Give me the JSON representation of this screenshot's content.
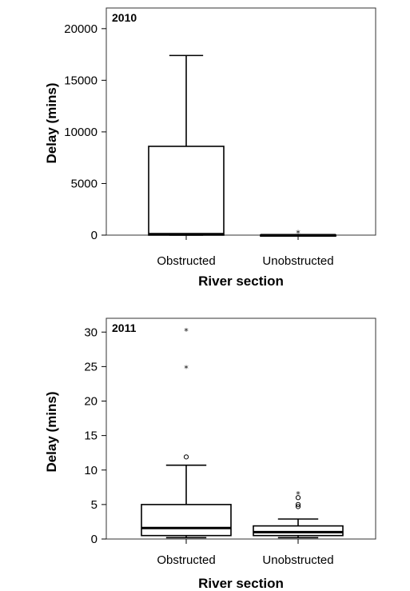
{
  "chart_data": [
    {
      "type": "boxplot",
      "panel_label": "2010",
      "xlabel": "River section",
      "ylabel": "Delay (mins)",
      "categories": [
        "Obstructed",
        "Unobstructed"
      ],
      "ylim": [
        0,
        22000
      ],
      "yticks": [
        "0",
        "5000",
        "10000",
        "15000",
        "20000"
      ],
      "boxes": [
        {
          "name": "Obstructed",
          "whisker_low": 0,
          "q1": 0,
          "median": 100,
          "q3": 8600,
          "whisker_high": 17400,
          "outliers_circle": [],
          "outliers_star": []
        },
        {
          "name": "Unobstructed",
          "whisker_low": 0,
          "q1": 0,
          "median": 0,
          "q3": 20,
          "whisker_high": 50,
          "outliers_circle": [],
          "outliers_star": [
            350
          ]
        }
      ]
    },
    {
      "type": "boxplot",
      "panel_label": "2011",
      "xlabel": "River section",
      "ylabel": "Delay (mins)",
      "categories": [
        "Obstructed",
        "Unobstructed"
      ],
      "ylim": [
        0,
        32
      ],
      "yticks": [
        "0",
        "5",
        "10",
        "15",
        "20",
        "25",
        "30"
      ],
      "boxes": [
        {
          "name": "Obstructed",
          "whisker_low": 0.2,
          "q1": 0.5,
          "median": 1.6,
          "q3": 5.0,
          "whisker_high": 10.7,
          "outliers_circle": [
            11.9
          ],
          "outliers_star": [
            25.0,
            30.4
          ]
        },
        {
          "name": "Unobstructed",
          "whisker_low": 0.2,
          "q1": 0.5,
          "median": 1.0,
          "q3": 1.9,
          "whisker_high": 2.9,
          "outliers_circle": [
            4.7,
            5.0,
            6.0
          ],
          "outliers_star": [
            6.7
          ]
        }
      ]
    }
  ]
}
